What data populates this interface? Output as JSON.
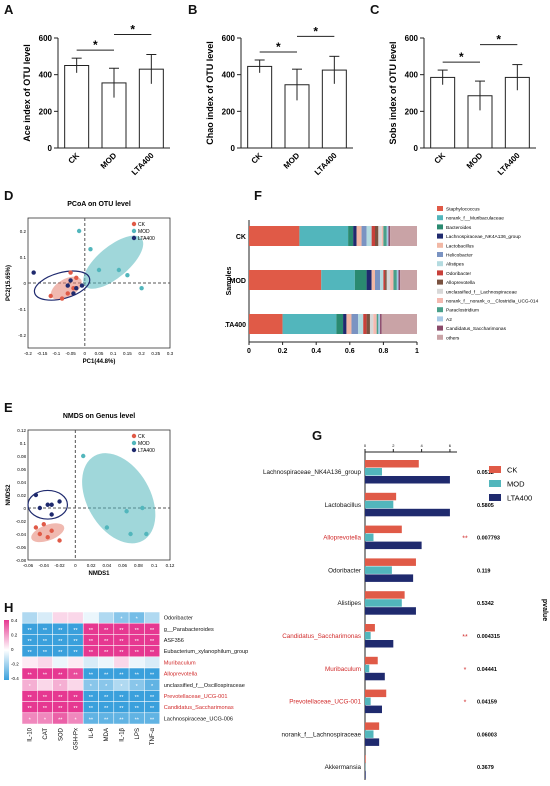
{
  "panel_labels": {
    "A": "A",
    "B": "B",
    "C": "C",
    "D": "D",
    "E": "E",
    "F": "F",
    "G": "G",
    "H": "H"
  },
  "colors": {
    "CK": "#e05a47",
    "MOD": "#52b6bc",
    "LTA400": "#1f2a6e"
  },
  "chart_data": [
    {
      "id": "A",
      "type": "bar",
      "ylabel": "Ace index of OTU level",
      "categories": [
        "CK",
        "MOD",
        "LTA400"
      ],
      "values": [
        450,
        355,
        430
      ],
      "errors": [
        40,
        80,
        80
      ],
      "ylim": [
        0,
        600
      ],
      "yticks": [
        "0",
        "200",
        "400",
        "600"
      ],
      "sig": [
        "*",
        "*"
      ]
    },
    {
      "id": "B",
      "type": "bar",
      "ylabel": "Chao index of OTU level",
      "categories": [
        "CK",
        "MOD",
        "LTA400"
      ],
      "values": [
        445,
        345,
        425
      ],
      "errors": [
        35,
        85,
        75
      ],
      "ylim": [
        0,
        600
      ],
      "yticks": [
        "0",
        "200",
        "400",
        "600"
      ],
      "sig": [
        "*",
        "*"
      ]
    },
    {
      "id": "C",
      "type": "bar",
      "ylabel": "Sobs index of OTU level",
      "categories": [
        "CK",
        "MOD",
        "LTA400"
      ],
      "values": [
        385,
        285,
        385
      ],
      "errors": [
        40,
        80,
        70
      ],
      "ylim": [
        0,
        600
      ],
      "yticks": [
        "0",
        "200",
        "400",
        "600"
      ],
      "sig": [
        "*",
        "*"
      ]
    },
    {
      "id": "D",
      "type": "scatter",
      "title": "PCoA on OTU level",
      "xlabel": "PC1(44.8%)",
      "ylabel": "PC2(15.65%)",
      "xlim": [
        -0.2,
        0.3
      ],
      "ylim": [
        -0.25,
        0.25
      ],
      "xticks": [
        "-0.2",
        "-0.15",
        "-0.1",
        "-0.05",
        "0",
        "0.05",
        "0.1",
        "0.15",
        "0.2",
        "0.25",
        "0.3"
      ],
      "yticks": [
        "-0.2",
        "-0.1",
        "0",
        "0.1",
        "0.2"
      ],
      "legend": [
        "CK",
        "MOD",
        "LTA400"
      ],
      "series": [
        {
          "name": "CK",
          "points": [
            [
              -0.12,
              -0.05
            ],
            [
              -0.05,
              0.04
            ],
            [
              -0.04,
              -0.02
            ],
            [
              -0.06,
              -0.04
            ],
            [
              -0.03,
              0.02
            ],
            [
              -0.08,
              -0.06
            ]
          ]
        },
        {
          "name": "MOD",
          "points": [
            [
              -0.02,
              0.2
            ],
            [
              0.02,
              0.13
            ],
            [
              0.12,
              0.05
            ],
            [
              0.15,
              0.03
            ],
            [
              0.2,
              -0.02
            ],
            [
              0.05,
              0.05
            ]
          ]
        },
        {
          "name": "LTA400",
          "points": [
            [
              -0.18,
              0.04
            ],
            [
              -0.06,
              -0.01
            ],
            [
              -0.04,
              -0.04
            ],
            [
              -0.03,
              -0.02
            ],
            [
              -0.01,
              -0.01
            ],
            [
              -0.05,
              0.01
            ]
          ]
        }
      ]
    },
    {
      "id": "E",
      "type": "scatter",
      "title": "NMDS on Genus level",
      "xlabel": "NMDS1",
      "ylabel": "NMDS2",
      "xlim": [
        -0.06,
        0.12
      ],
      "ylim": [
        -0.08,
        0.12
      ],
      "xticks": [
        "-0.06",
        "-0.04",
        "-0.02",
        "0",
        "0.02",
        "0.04",
        "0.06",
        "0.08",
        "0.1",
        "0.12"
      ],
      "yticks": [
        "-0.08",
        "-0.06",
        "-0.04",
        "-0.02",
        "0",
        "0.02",
        "0.04",
        "0.06",
        "0.08",
        "0.1",
        "0.12"
      ],
      "legend": [
        "CK",
        "MOD",
        "LTA400"
      ],
      "series": [
        {
          "name": "CK",
          "points": [
            [
              -0.05,
              -0.03
            ],
            [
              -0.045,
              -0.04
            ],
            [
              -0.035,
              -0.045
            ],
            [
              -0.03,
              -0.035
            ],
            [
              -0.02,
              -0.05
            ],
            [
              -0.04,
              -0.025
            ]
          ]
        },
        {
          "name": "MOD",
          "points": [
            [
              0.01,
              0.08
            ],
            [
              0.04,
              -0.03
            ],
            [
              0.065,
              -0.005
            ],
            [
              0.07,
              -0.04
            ],
            [
              0.085,
              0.0
            ],
            [
              0.09,
              -0.04
            ]
          ]
        },
        {
          "name": "LTA400",
          "points": [
            [
              -0.05,
              0.02
            ],
            [
              -0.045,
              0.0
            ],
            [
              -0.035,
              0.005
            ],
            [
              -0.03,
              0.005
            ],
            [
              -0.02,
              0.01
            ],
            [
              -0.03,
              -0.01
            ]
          ]
        }
      ]
    },
    {
      "id": "F",
      "type": "bar",
      "orientation": "stacked-horizontal",
      "ylabel": "Samples",
      "categories": [
        "CK",
        "MOD",
        "LTA400"
      ],
      "xticks": [
        "0",
        "0.2",
        "0.4",
        "0.6",
        "0.8",
        "1"
      ],
      "series": [
        {
          "name": "Staphylococcus",
          "color": "#e05a47",
          "values": [
            0.3,
            0.43,
            0.2
          ]
        },
        {
          "name": "norank_f__Muribaculaceae",
          "color": "#52b6bc",
          "values": [
            0.29,
            0.2,
            0.32
          ]
        },
        {
          "name": "Bacteroides",
          "color": "#2a8a70",
          "values": [
            0.03,
            0.07,
            0.04
          ]
        },
        {
          "name": "Lachnospiraceae_NK4A136_group",
          "color": "#1f2a6e",
          "values": [
            0.02,
            0.03,
            0.02
          ]
        },
        {
          "name": "Lactobacillus",
          "color": "#f2b8a5",
          "values": [
            0.03,
            0.02,
            0.03
          ]
        },
        {
          "name": "Helicobacter",
          "color": "#7a93c2",
          "values": [
            0.03,
            0.03,
            0.04
          ]
        },
        {
          "name": "Alistipes",
          "color": "#b4dbe0",
          "values": [
            0.03,
            0.02,
            0.03
          ]
        },
        {
          "name": "Odoribacter",
          "color": "#c8403a",
          "values": [
            0.02,
            0.01,
            0.02
          ]
        },
        {
          "name": "Alloprevotella",
          "color": "#7a5240",
          "values": [
            0.02,
            0.01,
            0.02
          ]
        },
        {
          "name": "unclassified_f__Lachnospiraceae",
          "color": "#d8d8d8",
          "values": [
            0.02,
            0.02,
            0.02
          ]
        },
        {
          "name": "norank_f__norank_o__Clostridia_UCG-014",
          "color": "#f4b9b0",
          "values": [
            0.01,
            0.02,
            0.02
          ]
        },
        {
          "name": "Paraclostridium",
          "color": "#49a08a",
          "values": [
            0.02,
            0.02,
            0.01
          ]
        },
        {
          "name": "A2",
          "color": "#a7c9e6",
          "values": [
            0.01,
            0.01,
            0.01
          ]
        },
        {
          "name": "Candidatus_Saccharimonas",
          "color": "#8a4a6a",
          "values": [
            0.01,
            0.01,
            0.01
          ]
        },
        {
          "name": "others",
          "color": "#c9a3a6",
          "values": [
            0.16,
            0.1,
            0.21
          ]
        }
      ]
    },
    {
      "id": "G",
      "type": "bar",
      "orientation": "grouped-horizontal",
      "ylabel_right": "pvalue",
      "xticks": [
        "0",
        "2",
        "4",
        "6"
      ],
      "legend": [
        "CK",
        "MOD",
        "LTA400"
      ],
      "categories": [
        "Lachnospiraceae_NK4A136_group",
        "Lactobacillus",
        "Alloprevotella",
        "Odoribacter",
        "Alistipes",
        "Candidatus_Saccharimonas",
        "Muribaculum",
        "Prevotellaceae_UCG-001",
        "norank_f__Lachnospiraceae",
        "Akkermansia"
      ],
      "highlight": [
        false,
        false,
        true,
        false,
        false,
        true,
        true,
        true,
        false,
        false
      ],
      "pvalues": [
        "0.0512",
        "0.5805",
        "0.007793",
        "0.119",
        "0.5342",
        "0.004315",
        "0.04441",
        "0.04159",
        "0.06003",
        "0.3679"
      ],
      "stars": [
        "",
        "",
        "**",
        "",
        "",
        "**",
        "*",
        "*",
        "",
        ""
      ],
      "series": [
        {
          "name": "CK",
          "values": [
            3.8,
            2.2,
            2.6,
            3.6,
            2.8,
            0.7,
            0.9,
            1.5,
            1.0,
            0.05
          ]
        },
        {
          "name": "MOD",
          "values": [
            1.2,
            2.0,
            0.6,
            1.9,
            2.6,
            0.4,
            0.3,
            0.4,
            0.6,
            0.02
          ]
        },
        {
          "name": "LTA400",
          "values": [
            6.0,
            6.0,
            4.0,
            3.4,
            3.6,
            2.0,
            1.4,
            1.2,
            1.0,
            0.05
          ]
        }
      ]
    },
    {
      "id": "H",
      "type": "heatmap",
      "rows": [
        "Odoribacter",
        "g__Parabacteroides",
        "ASF356",
        "Eubacterium_xylanophilum_group",
        "Muribaculum",
        "Alloprevotella",
        "unclassified_f__Oscillospiraceae",
        "Prevotellaceae_UCG-001",
        "Candidatus_Saccharimonas",
        "Lachnospiraceae_UCG-006"
      ],
      "highlight_rows": [
        false,
        false,
        false,
        false,
        true,
        true,
        false,
        true,
        true,
        false
      ],
      "cols": [
        "IL-10",
        "CAT",
        "SOD",
        "GSH-Px",
        "IL-6",
        "MDA",
        "IL-1β",
        "LPS",
        "TNF-α"
      ],
      "colorbar_ticks": [
        "0.4",
        "0.2",
        "0",
        "-0.2",
        "-0.4"
      ],
      "values": [
        [
          -0.2,
          -0.1,
          0.1,
          0.1,
          -0.05,
          -0.2,
          -0.3,
          -0.35,
          -0.2
        ],
        [
          -0.5,
          -0.5,
          -0.5,
          -0.5,
          0.5,
          0.5,
          0.5,
          0.5,
          0.5
        ],
        [
          -0.5,
          -0.5,
          -0.5,
          -0.5,
          0.5,
          0.5,
          0.5,
          0.5,
          0.5
        ],
        [
          -0.5,
          -0.5,
          -0.5,
          -0.5,
          0.5,
          0.5,
          0.5,
          0.5,
          0.5
        ],
        [
          0.05,
          0.1,
          -0.05,
          0.05,
          -0.1,
          -0.05,
          0.1,
          -0.05,
          -0.1
        ],
        [
          0.5,
          0.5,
          0.5,
          0.45,
          -0.5,
          -0.5,
          -0.5,
          -0.5,
          -0.5
        ],
        [
          0.2,
          0.1,
          0.2,
          0.1,
          -0.3,
          -0.3,
          -0.2,
          -0.3,
          -0.4
        ],
        [
          0.5,
          0.5,
          0.5,
          0.5,
          -0.5,
          -0.5,
          -0.5,
          -0.5,
          -0.5
        ],
        [
          0.5,
          0.5,
          0.5,
          0.5,
          -0.5,
          -0.5,
          -0.5,
          -0.5,
          -0.5
        ],
        [
          0.3,
          0.3,
          0.4,
          0.3,
          -0.4,
          -0.4,
          -0.4,
          -0.4,
          -0.4
        ]
      ],
      "stars": [
        [
          "",
          "",
          "",
          "",
          "",
          "",
          "*",
          "*",
          ""
        ],
        [
          "**",
          "**",
          "**",
          "**",
          "**",
          "**",
          "**",
          "**",
          "**"
        ],
        [
          "**",
          "**",
          "**",
          "**",
          "**",
          "**",
          "**",
          "**",
          "**"
        ],
        [
          "**",
          "**",
          "**",
          "**",
          "**",
          "**",
          "**",
          "**",
          "**"
        ],
        [
          "",
          "",
          "",
          "",
          "",
          "",
          "",
          "",
          ""
        ],
        [
          "**",
          "**",
          "**",
          "**",
          "**",
          "**",
          "**",
          "**",
          "**"
        ],
        [
          "*",
          "",
          "*",
          "",
          "*",
          "*",
          "*",
          "*",
          "*"
        ],
        [
          "**",
          "**",
          "**",
          "**",
          "**",
          "**",
          "**",
          "**",
          "**"
        ],
        [
          "**",
          "**",
          "**",
          "**",
          "**",
          "**",
          "**",
          "**",
          "**"
        ],
        [
          "*",
          "*",
          "**",
          "*",
          "**",
          "**",
          "**",
          "**",
          "**"
        ]
      ]
    }
  ]
}
